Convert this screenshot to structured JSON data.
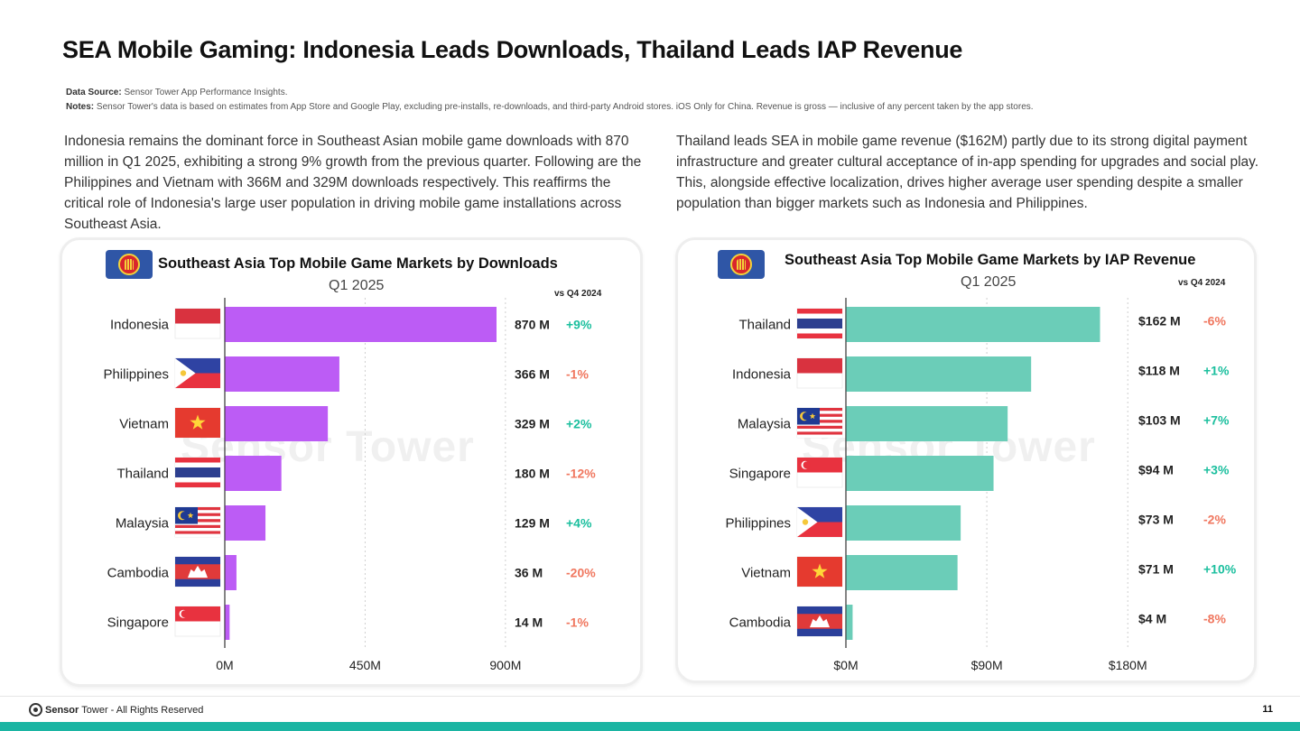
{
  "page": {
    "title": "SEA Mobile Gaming: Indonesia Leads Downloads, Thailand Leads IAP Revenue",
    "data_source_label": "Data Source:",
    "data_source": "Sensor Tower App Performance Insights.",
    "notes_label": "Notes:",
    "notes": "Sensor Tower's data is based on estimates from App Store and Google Play, excluding pre-installs, re-downloads, and third-party Android stores. iOS Only for China.  Revenue is gross — inclusive of any percent taken by the app stores.",
    "para_left": "Indonesia remains the dominant force in Southeast Asian mobile game downloads with 870 million in Q1 2025, exhibiting a strong 9% growth from the previous quarter. Following are the Philippines and Vietnam with 366M and 329M downloads respectively. This reaffirms the critical role of Indonesia's large user population in driving mobile game installations across Southeast Asia.",
    "para_right": "Thailand leads SEA in mobile game revenue ($162M) partly due to its strong digital payment infrastructure and greater cultural acceptance of in-app spending for upgrades and social play. This, alongside effective localization, drives higher average user spending despite a smaller population than bigger markets such as Indonesia and Philippines.",
    "watermark": "Sensor Tower",
    "footer_brand": "Sensor",
    "footer_brand2": "Tower",
    "footer_text": " - All Rights Reserved",
    "page_number": "11"
  },
  "colors": {
    "downloads_bar": "#bc5cf5",
    "revenue_bar": "#6bcdb8",
    "positive": "#1bbf9e",
    "negative": "#f0775f",
    "footer_bar": "#1bb5a3"
  },
  "chart_data": [
    {
      "type": "bar",
      "orientation": "horizontal",
      "title": "Southeast Asia Top Mobile Game Markets by Downloads",
      "subtitle": "Q1 2025",
      "change_header": "vs Q4 2024",
      "categories": [
        "Indonesia",
        "Philippines",
        "Vietnam",
        "Thailand",
        "Malaysia",
        "Cambodia",
        "Singapore"
      ],
      "values": [
        870,
        366,
        329,
        180,
        129,
        36,
        14
      ],
      "unit": "M downloads",
      "value_labels": [
        "870 M",
        "366 M",
        "329 M",
        "180 M",
        "129 M",
        "36 M",
        "14 M"
      ],
      "changes": [
        "+9%",
        "-1%",
        "+2%",
        "-12%",
        "+4%",
        "-20%",
        "-1%"
      ],
      "xlim": [
        0,
        900
      ],
      "ticks": [
        0,
        450,
        900
      ],
      "tick_labels": [
        "0M",
        "450M",
        "900M"
      ],
      "grid": true
    },
    {
      "type": "bar",
      "orientation": "horizontal",
      "title": "Southeast Asia Top Mobile Game Markets by IAP Revenue",
      "subtitle": "Q1 2025",
      "change_header": "vs Q4 2024",
      "categories": [
        "Thailand",
        "Indonesia",
        "Malaysia",
        "Singapore",
        "Philippines",
        "Vietnam",
        "Cambodia"
      ],
      "values": [
        162,
        118,
        103,
        94,
        73,
        71,
        4
      ],
      "unit": "$M",
      "value_labels": [
        "$162 M",
        "$118 M",
        "$103 M",
        "$94 M",
        "$73 M",
        "$71 M",
        "$4 M"
      ],
      "changes": [
        "-6%",
        "+1%",
        "+7%",
        "+3%",
        "-2%",
        "+10%",
        "-8%"
      ],
      "xlim": [
        0,
        180
      ],
      "ticks": [
        0,
        90,
        180
      ],
      "tick_labels": [
        "$0M",
        "$90M",
        "$180M"
      ],
      "grid": true
    }
  ]
}
